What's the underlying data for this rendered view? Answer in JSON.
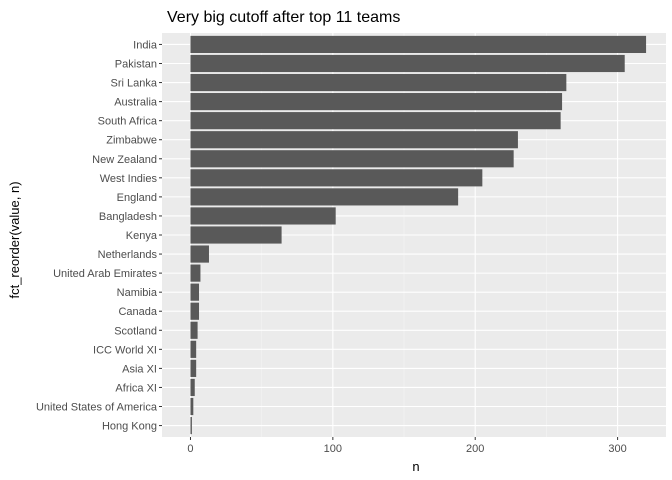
{
  "chart_data": {
    "type": "bar",
    "orientation": "horizontal",
    "title": "Very big cutoff after top 11 teams",
    "xlabel": "n",
    "ylabel": "fct_reorder(value, n)",
    "categories": [
      "India",
      "Pakistan",
      "Sri Lanka",
      "Australia",
      "South Africa",
      "Zimbabwe",
      "New Zealand",
      "West Indies",
      "England",
      "Bangladesh",
      "Kenya",
      "Netherlands",
      "United Arab Emirates",
      "Namibia",
      "Canada",
      "Scotland",
      "ICC World XI",
      "Asia XI",
      "Africa XI",
      "United States of America",
      "Hong Kong"
    ],
    "values": [
      320,
      305,
      264,
      261,
      260,
      230,
      227,
      205,
      188,
      102,
      64,
      13,
      7,
      6,
      6,
      5,
      4,
      4,
      3,
      2,
      1
    ],
    "xlim": [
      -20,
      334
    ],
    "xticks": [
      0,
      100,
      200,
      300
    ],
    "grid": true,
    "colors": {
      "bar": "#595959",
      "panel": "#ebebeb",
      "grid_major": "#ffffff",
      "grid_minor": "#f5f5f5",
      "tick_text": "#4d4d4d"
    }
  }
}
